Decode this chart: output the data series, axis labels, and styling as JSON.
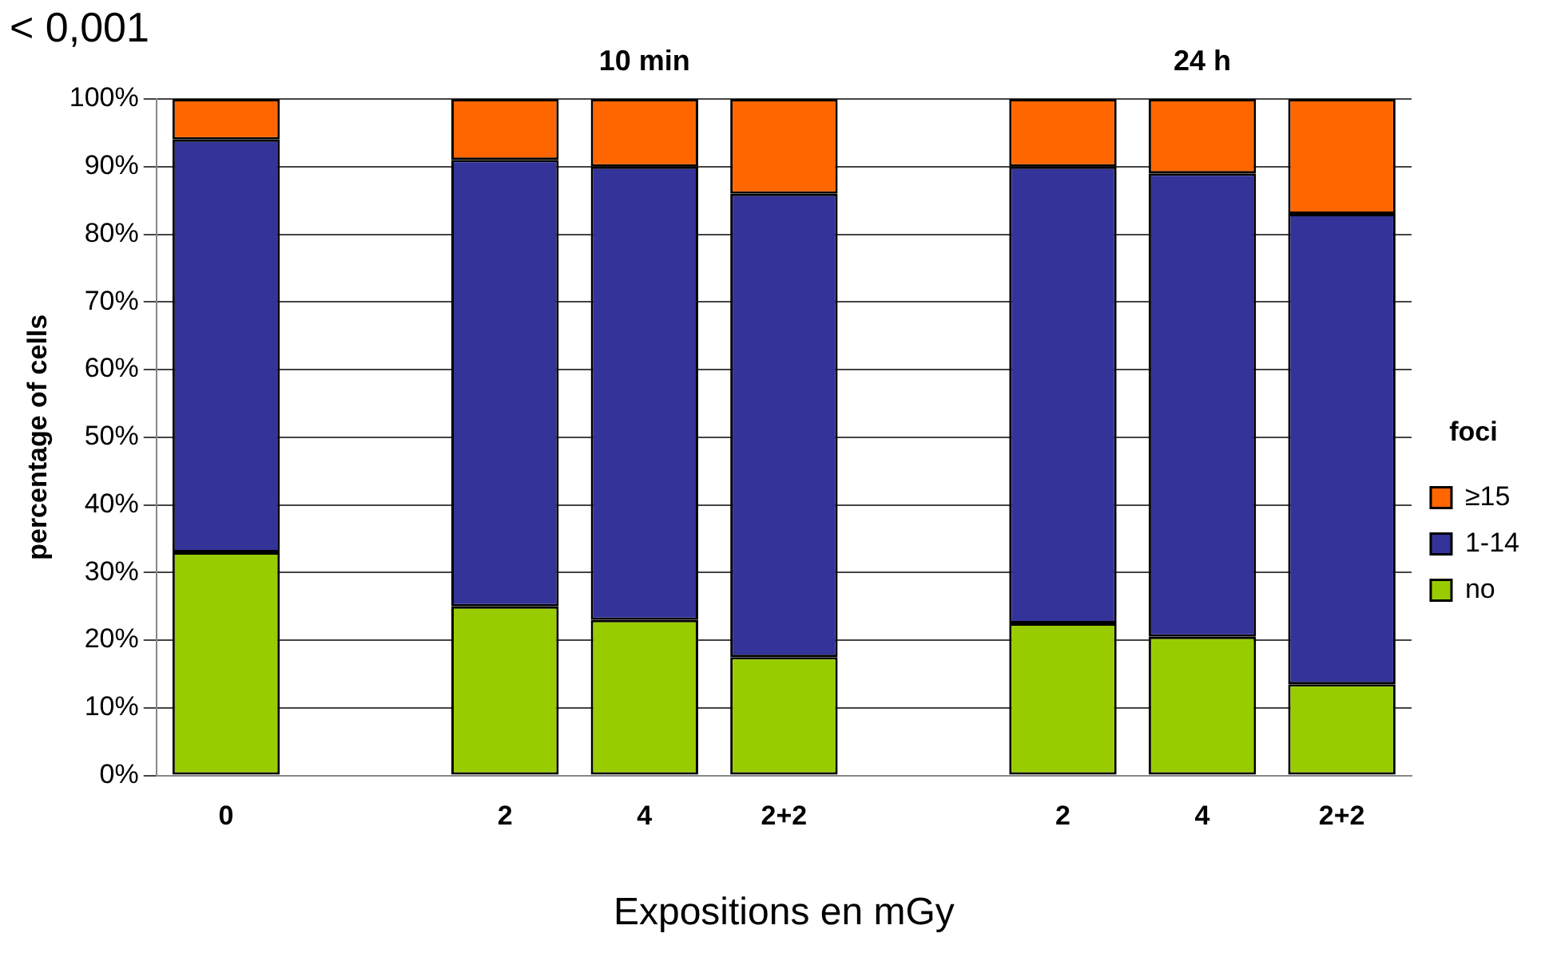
{
  "chart_data": {
    "type": "bar",
    "stacked": true,
    "xlabel": "Expositions en mGy",
    "ylabel": "percentage of cells",
    "legend_title": "foci",
    "annotations": [
      "< 0,001",
      "10 min",
      "24 h"
    ],
    "categories": [
      "0",
      null,
      "2",
      "4",
      "2+2",
      null,
      "2",
      "4",
      "2+2"
    ],
    "series": [
      {
        "name": "no",
        "color": "#99cc00",
        "values": [
          33,
          null,
          25,
          23,
          17.5,
          null,
          22.5,
          20.5,
          13.5
        ]
      },
      {
        "name": "1-14",
        "color": "#333399",
        "values": [
          61,
          null,
          66,
          67,
          68.5,
          null,
          67.5,
          68.5,
          69.5
        ]
      },
      {
        "name": "≥15",
        "color": "#ff6600",
        "values": [
          6,
          null,
          9,
          10,
          14,
          null,
          10,
          11,
          17
        ]
      }
    ],
    "ylim": [
      0,
      100
    ],
    "yticks": [
      {
        "value": 0,
        "label": "0%"
      },
      {
        "value": 10,
        "label": "10%"
      },
      {
        "value": 20,
        "label": "20%"
      },
      {
        "value": 30,
        "label": "30%"
      },
      {
        "value": 40,
        "label": "40%"
      },
      {
        "value": 50,
        "label": "50%"
      },
      {
        "value": 60,
        "label": "60%"
      },
      {
        "value": 70,
        "label": "70%"
      },
      {
        "value": 80,
        "label": "80%"
      },
      {
        "value": 90,
        "label": "90%"
      },
      {
        "value": 100,
        "label": "100%"
      }
    ],
    "grid": "y",
    "legend": "right"
  }
}
